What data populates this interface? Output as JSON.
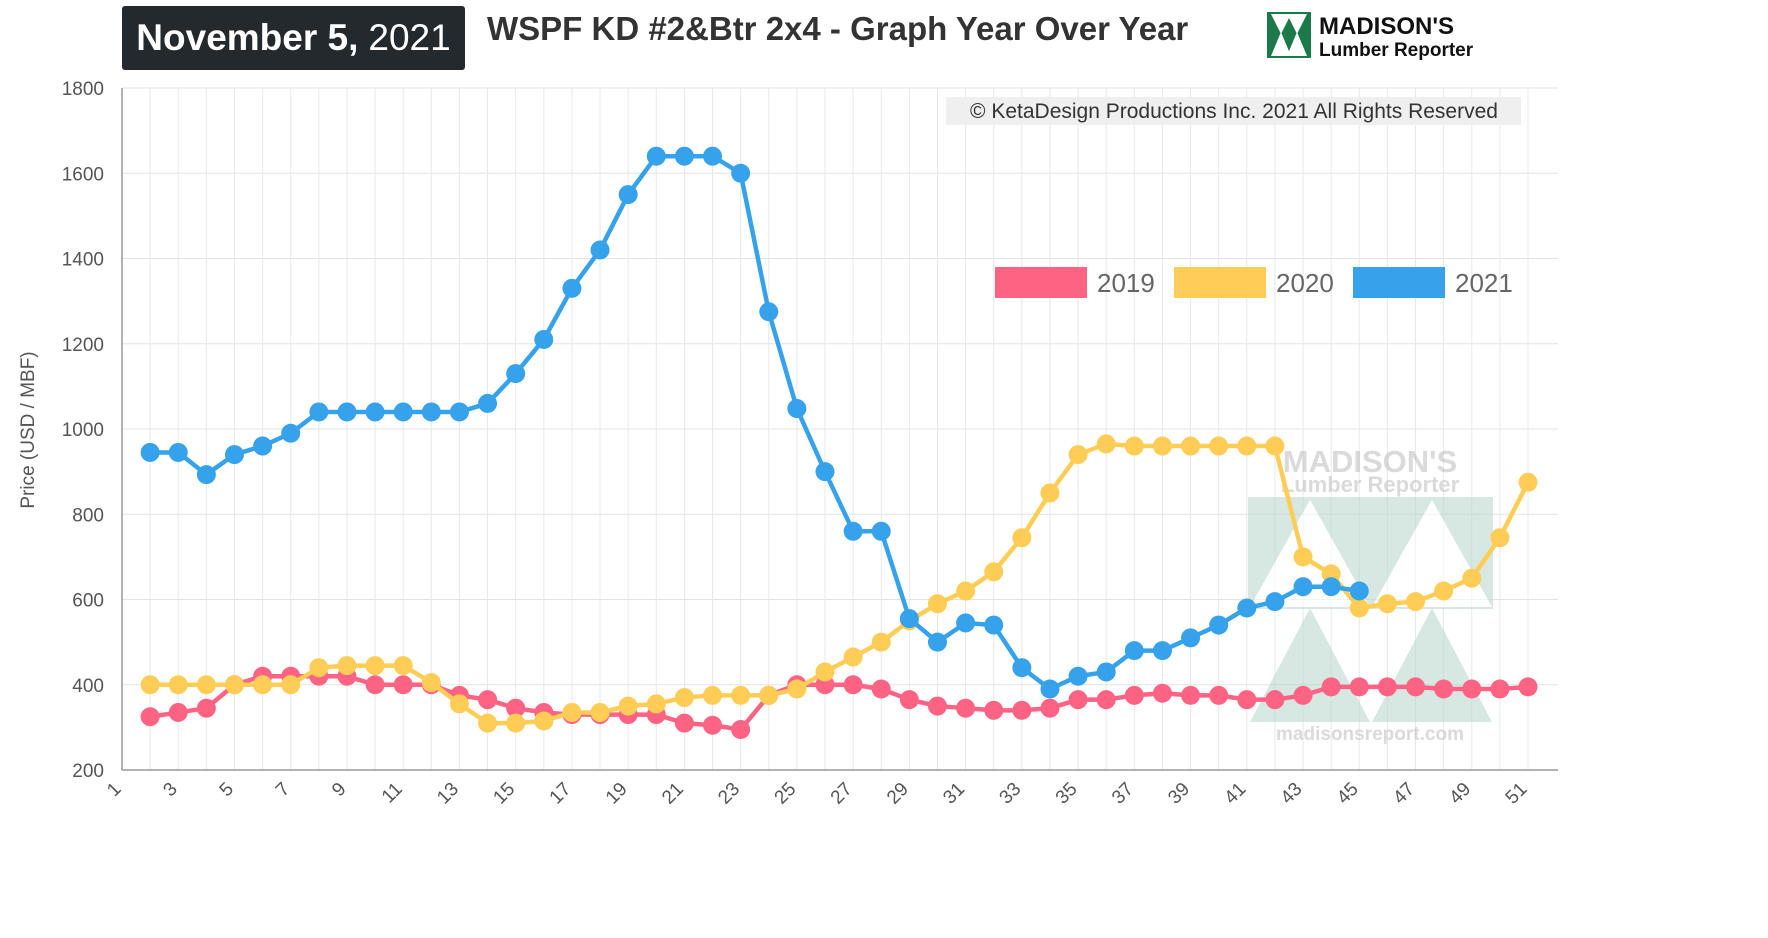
{
  "header": {
    "date_main": "November 5,",
    "date_year": "2021",
    "title": "WSPF KD #2&Btr 2x4 - Graph Year Over Year",
    "brand_line1": "MADISON'S",
    "brand_line2": "Lumber Reporter"
  },
  "watermark": {
    "line1": "MADISON'S",
    "line2": "Lumber Reporter",
    "url": "madisonsreport.com"
  },
  "copyright": "© KetaDesign Productions Inc. 2021 All Rights Reserved",
  "colors": {
    "2019": "#ff6384",
    "2020": "#ffcd56",
    "2021": "#36a2eb",
    "badge": "#24292e",
    "logo_green": "#1b7a4a"
  },
  "chart_data": {
    "type": "line",
    "xlabel": "",
    "ylabel": "Price (USD / MBF)",
    "xlim": [
      1,
      51
    ],
    "ylim": [
      200,
      1800
    ],
    "y_ticks": [
      200,
      400,
      600,
      800,
      1000,
      1200,
      1400,
      1600,
      1800
    ],
    "x_ticks": [
      1,
      3,
      5,
      7,
      9,
      11,
      13,
      15,
      17,
      19,
      21,
      23,
      25,
      27,
      29,
      31,
      33,
      35,
      37,
      39,
      41,
      43,
      45,
      47,
      49,
      51
    ],
    "grid": true,
    "legend_position": "top-right",
    "series": [
      {
        "name": "2019",
        "x": [
          2,
          3,
          4,
          5,
          6,
          7,
          8,
          9,
          10,
          11,
          12,
          13,
          14,
          15,
          16,
          17,
          18,
          19,
          20,
          21,
          22,
          23,
          24,
          25,
          26,
          27,
          28,
          29,
          30,
          31,
          32,
          33,
          34,
          35,
          36,
          37,
          38,
          39,
          40,
          41,
          42,
          43,
          44,
          45,
          46,
          47,
          48,
          49,
          50,
          51
        ],
        "values": [
          325,
          335,
          345,
          400,
          420,
          420,
          420,
          420,
          400,
          400,
          400,
          375,
          365,
          345,
          335,
          330,
          330,
          330,
          330,
          310,
          305,
          295,
          375,
          400,
          400,
          400,
          390,
          365,
          350,
          345,
          340,
          340,
          345,
          365,
          365,
          375,
          380,
          375,
          375,
          365,
          365,
          375,
          395,
          395,
          395,
          395,
          390,
          390,
          390,
          395
        ]
      },
      {
        "name": "2020",
        "x": [
          2,
          3,
          4,
          5,
          6,
          7,
          8,
          9,
          10,
          11,
          12,
          13,
          14,
          15,
          16,
          17,
          18,
          19,
          20,
          21,
          22,
          23,
          24,
          25,
          26,
          27,
          28,
          29,
          30,
          31,
          32,
          33,
          34,
          35,
          36,
          37,
          38,
          39,
          40,
          41,
          42,
          43,
          44,
          45,
          46,
          47,
          48,
          49,
          50,
          51
        ],
        "values": [
          400,
          400,
          400,
          400,
          400,
          400,
          440,
          445,
          445,
          445,
          405,
          355,
          310,
          310,
          315,
          335,
          335,
          350,
          355,
          370,
          375,
          375,
          375,
          390,
          430,
          465,
          500,
          550,
          590,
          620,
          665,
          745,
          850,
          940,
          965,
          960,
          960,
          960,
          960,
          960,
          960,
          700,
          660,
          580,
          590,
          595,
          620,
          650,
          745,
          875
        ]
      },
      {
        "name": "2021",
        "x": [
          2,
          3,
          4,
          5,
          6,
          7,
          8,
          9,
          10,
          11,
          12,
          13,
          14,
          15,
          16,
          17,
          18,
          19,
          20,
          21,
          22,
          23,
          24,
          25,
          26,
          27,
          28,
          29,
          30,
          31,
          32,
          33,
          34,
          35,
          36,
          37,
          38,
          39,
          40,
          41,
          42,
          43,
          44,
          45
        ],
        "values": [
          945,
          945,
          893,
          940,
          960,
          990,
          1040,
          1040,
          1040,
          1040,
          1040,
          1040,
          1060,
          1130,
          1210,
          1330,
          1420,
          1550,
          1640,
          1640,
          1640,
          1600,
          1275,
          1048,
          900,
          760,
          760,
          555,
          500,
          545,
          540,
          440,
          390,
          420,
          430,
          480,
          480,
          510,
          540,
          580,
          595,
          630,
          630,
          620
        ]
      }
    ]
  }
}
